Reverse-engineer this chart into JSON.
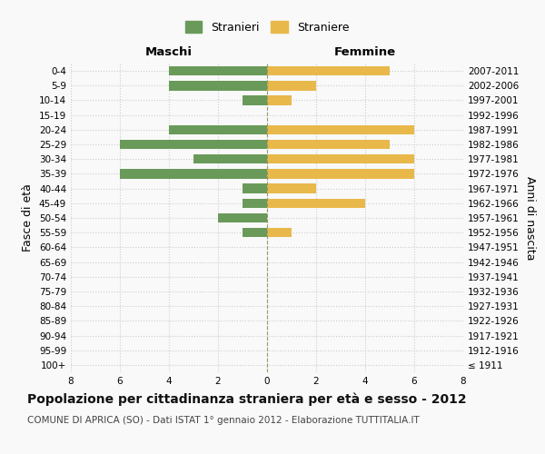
{
  "age_groups": [
    "100+",
    "95-99",
    "90-94",
    "85-89",
    "80-84",
    "75-79",
    "70-74",
    "65-69",
    "60-64",
    "55-59",
    "50-54",
    "45-49",
    "40-44",
    "35-39",
    "30-34",
    "25-29",
    "20-24",
    "15-19",
    "10-14",
    "5-9",
    "0-4"
  ],
  "birth_years": [
    "≤ 1911",
    "1912-1916",
    "1917-1921",
    "1922-1926",
    "1927-1931",
    "1932-1936",
    "1937-1941",
    "1942-1946",
    "1947-1951",
    "1952-1956",
    "1957-1961",
    "1962-1966",
    "1967-1971",
    "1972-1976",
    "1977-1981",
    "1982-1986",
    "1987-1991",
    "1992-1996",
    "1997-2001",
    "2002-2006",
    "2007-2011"
  ],
  "maschi": [
    0,
    0,
    0,
    0,
    0,
    0,
    0,
    0,
    0,
    1,
    2,
    1,
    1,
    6,
    3,
    6,
    4,
    0,
    1,
    4,
    4
  ],
  "femmine": [
    0,
    0,
    0,
    0,
    0,
    0,
    0,
    0,
    0,
    1,
    0,
    4,
    2,
    6,
    6,
    5,
    6,
    0,
    1,
    2,
    5
  ],
  "male_color": "#6a9a5a",
  "female_color": "#e8b84b",
  "background_color": "#f9f9f9",
  "grid_color": "#cccccc",
  "title": "Popolazione per cittadinanza straniera per età e sesso - 2012",
  "subtitle": "COMUNE DI APRICA (SO) - Dati ISTAT 1° gennaio 2012 - Elaborazione TUTTITALIA.IT",
  "xlabel_left": "Maschi",
  "xlabel_right": "Femmine",
  "ylabel_left": "Fasce di età",
  "ylabel_right": "Anni di nascita",
  "legend_male": "Stranieri",
  "legend_female": "Straniere",
  "xlim": 8,
  "title_fontsize": 10,
  "subtitle_fontsize": 7.5,
  "label_fontsize": 9,
  "tick_fontsize": 7.5,
  "header_fontsize": 9.5
}
